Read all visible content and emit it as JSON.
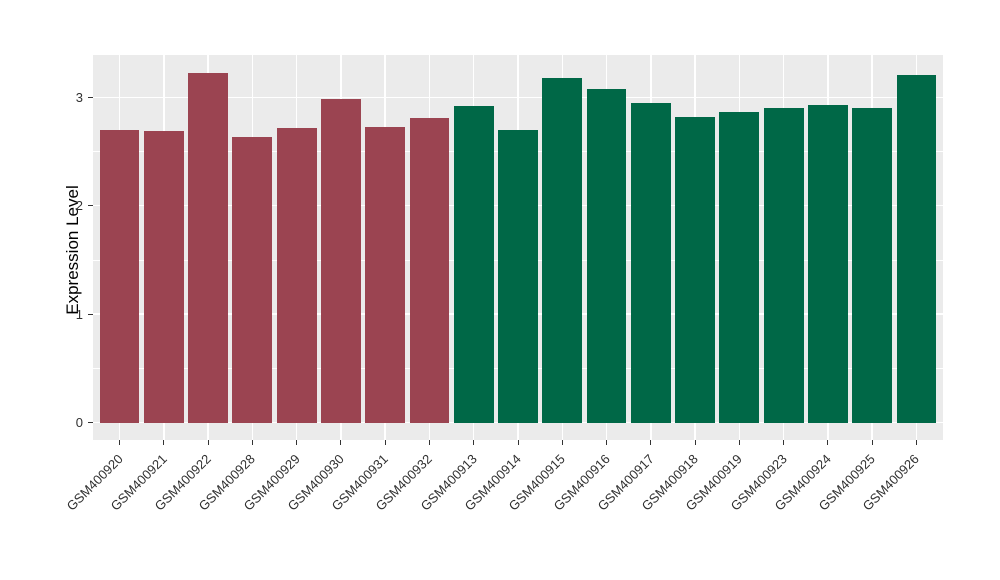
{
  "figure": {
    "kind": "ggplot-style bar chart",
    "background_color": "#FFFFFF",
    "panel_background_color": "#EBEBEB",
    "grid_color": "#FFFFFF",
    "tick_color": "#333333",
    "tick_label_color": "#303030",
    "axis_title_color": "#000000"
  },
  "chart_data": {
    "type": "bar",
    "title": "",
    "xlabel": "",
    "ylabel": "Expression Level",
    "categories": [
      "GSM400920",
      "GSM400921",
      "GSM400922",
      "GSM400928",
      "GSM400929",
      "GSM400930",
      "GSM400931",
      "GSM400932",
      "GSM400913",
      "GSM400914",
      "GSM400915",
      "GSM400916",
      "GSM400917",
      "GSM400918",
      "GSM400919",
      "GSM400923",
      "GSM400924",
      "GSM400925",
      "GSM400926"
    ],
    "values": [
      2.7,
      2.69,
      3.22,
      2.63,
      2.72,
      2.98,
      2.73,
      2.81,
      2.92,
      2.7,
      3.18,
      3.08,
      2.95,
      2.82,
      2.86,
      2.9,
      2.93,
      2.9,
      3.21
    ],
    "bar_groups": [
      "A",
      "A",
      "A",
      "A",
      "A",
      "A",
      "A",
      "A",
      "B",
      "B",
      "B",
      "B",
      "B",
      "B",
      "B",
      "B",
      "B",
      "B",
      "B"
    ],
    "group_colors": {
      "A": "#9B4451",
      "B": "#006847"
    },
    "yticks": [
      0,
      1,
      2,
      3
    ],
    "ytick_labels": [
      "0",
      "1",
      "2",
      "3"
    ],
    "minor_yticks": [
      0.5,
      1.5,
      2.5
    ],
    "ylim": [
      -0.16,
      3.39
    ],
    "grid": true,
    "legend_position": "none",
    "x_label_rotation_deg": 45,
    "bar_relative_width": 0.9
  }
}
